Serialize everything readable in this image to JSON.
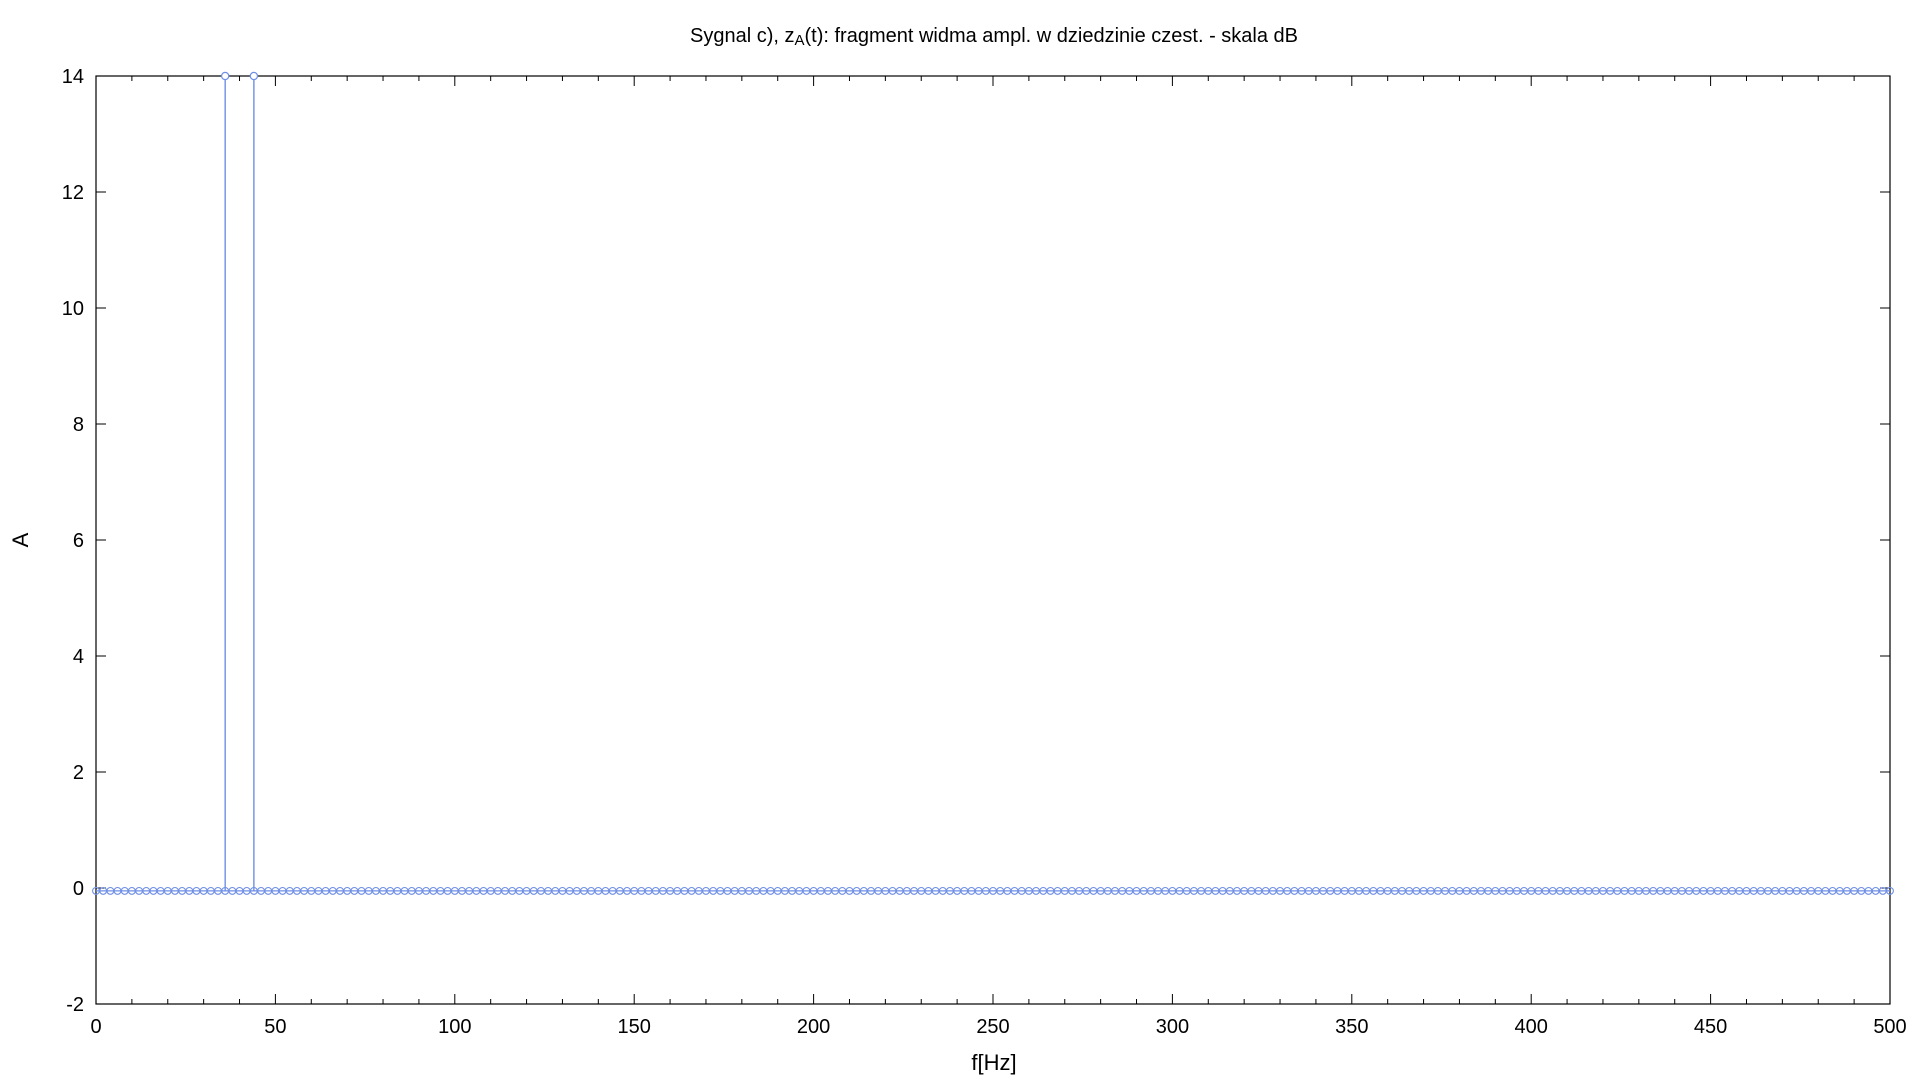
{
  "chart_data": {
    "type": "stem",
    "title": "Sygnal c), z(t): fragment widma ampl. w dziedzinie czest. - skala dB",
    "title_parts": {
      "before": "Sygnal c), z",
      "subscript": "A",
      "after": "(t): fragment widma ampl. w dziedzinie czest. - skala dB"
    },
    "xlabel": "f[Hz]",
    "ylabel": "A",
    "xlim": [
      0,
      500
    ],
    "ylim": [
      -2,
      14
    ],
    "x_ticks": [
      0,
      50,
      100,
      150,
      200,
      250,
      300,
      350,
      400,
      450,
      500
    ],
    "y_ticks": [
      -2,
      0,
      2,
      4,
      6,
      8,
      10,
      12,
      14
    ],
    "grid": false,
    "color": "#6f8fe6",
    "baseline": {
      "x_start": 0,
      "x_end": 500,
      "step": 2,
      "value": -0.05
    },
    "peaks": [
      {
        "x": 36,
        "y": 14
      },
      {
        "x": 44,
        "y": 14
      }
    ]
  }
}
